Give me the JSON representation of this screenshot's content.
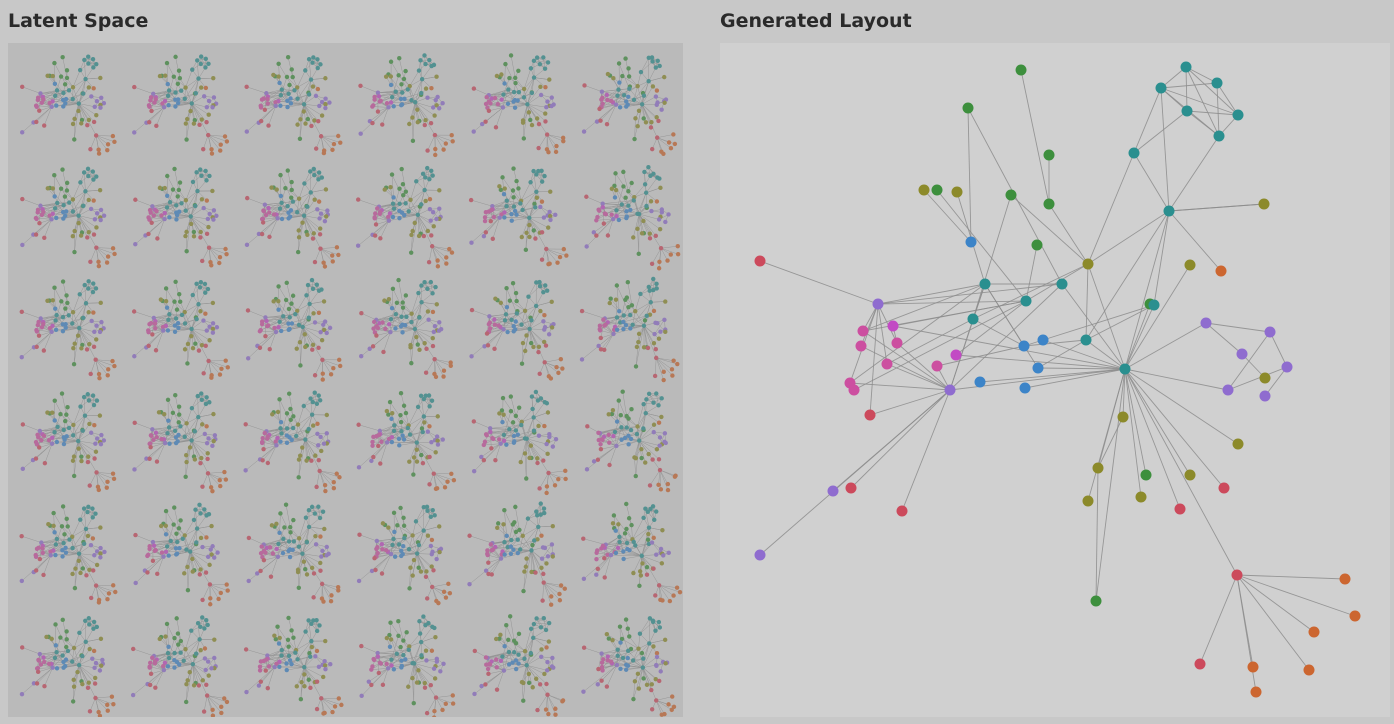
{
  "panels": {
    "latent_title": "Latent Space",
    "generated_title": "Generated Layout"
  },
  "colors": {
    "background": "#c8c8c8",
    "panel": "#d0d0d0",
    "edge": "#8c8c8c",
    "teal": "#2a8f8f",
    "green": "#3d8f3d",
    "olive": "#8c8a2a",
    "pink": "#cc4fa0",
    "red": "#cc4a5c",
    "purple": "#8f6ccf",
    "blue": "#3c84c8",
    "orange": "#cc6630",
    "magenta": "#c24ac4"
  },
  "latent_grid": {
    "rows": 6,
    "cols": 6
  }
}
